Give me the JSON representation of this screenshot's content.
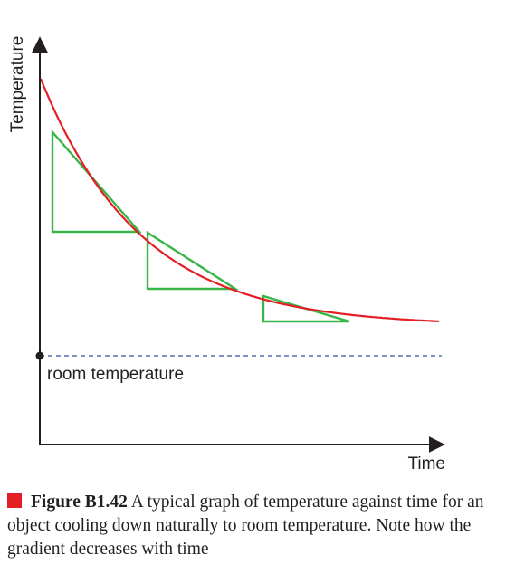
{
  "chart_data": {
    "type": "line",
    "xlabel": "Time",
    "ylabel": "Temperature",
    "reference_line": {
      "label": "room temperature",
      "style": "dashed",
      "color": "#5b6fb5"
    },
    "series": [
      {
        "kind": "cooling-curve",
        "color": "#e31e24"
      }
    ],
    "gradient_triangles": {
      "count": 3,
      "color": "#39b54a"
    },
    "grid": false,
    "ticks": false
  },
  "caption": {
    "label": "Figure B1.42",
    "text": "A typical graph of temperature against time for an object cooling down naturally to room temperature. Note how the gradient decreases with time"
  },
  "colors": {
    "curve": "#e31e24",
    "triangles": "#39b54a",
    "reference": "#5b6fb5",
    "marker": "#e31e24",
    "axes": "#231f20"
  }
}
